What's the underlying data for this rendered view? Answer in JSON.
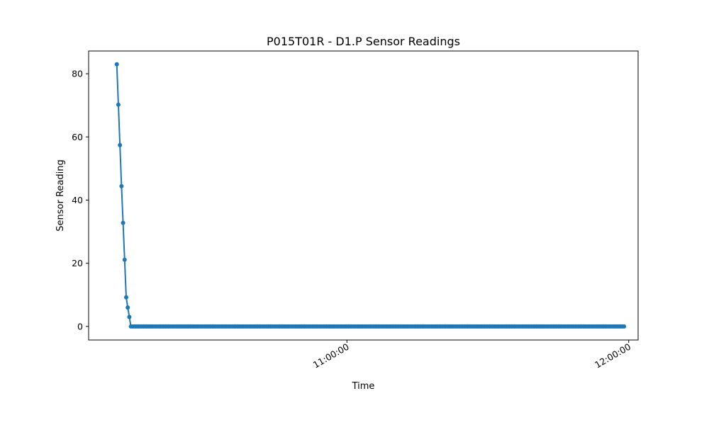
{
  "chart_data": {
    "type": "line",
    "title": "P015T01R - D1.P Sensor Readings",
    "xlabel": "Time",
    "ylabel": "Sensor Reading",
    "x_unit": "time-of-day",
    "xlim": [
      "10:05:00",
      "12:02:00"
    ],
    "ylim": [
      -4.3,
      87.2
    ],
    "x_ticks": [
      "11:00:00",
      "12:00:00"
    ],
    "y_ticks": [
      0,
      20,
      40,
      60,
      80
    ],
    "grid": false,
    "legend": "none",
    "series": [
      {
        "color": "#1f77b4",
        "marker": "circle",
        "x_start": "10:11:00",
        "x_end": "11:59:00",
        "x_step_seconds": 20,
        "values": [
          83,
          70.2,
          57.4,
          44.4,
          32.8,
          21.1,
          9.2,
          6.0,
          3.0
        ]
      }
    ]
  }
}
